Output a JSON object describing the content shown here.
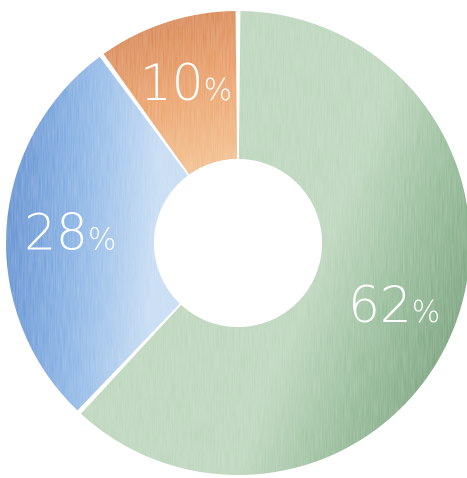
{
  "chart_data": {
    "type": "pie",
    "variant": "donut",
    "slices": [
      {
        "label": "62%",
        "value": 62,
        "color": "#8fb992",
        "color_light": "#b9d4b9",
        "color_dark": "#6fa074"
      },
      {
        "label": "28%",
        "value": 28,
        "color": "#7eaee3",
        "color_light": "#c4dbf3",
        "color_dark": "#4d8ad0"
      },
      {
        "label": "10%",
        "value": 10,
        "color": "#e99a55",
        "color_light": "#f2bb83",
        "color_dark": "#d77f34"
      }
    ],
    "start_angle_deg": 0,
    "direction": "clockwise",
    "legend": "none",
    "label_color": "#ffffff",
    "separator_color": "#ffffff"
  }
}
